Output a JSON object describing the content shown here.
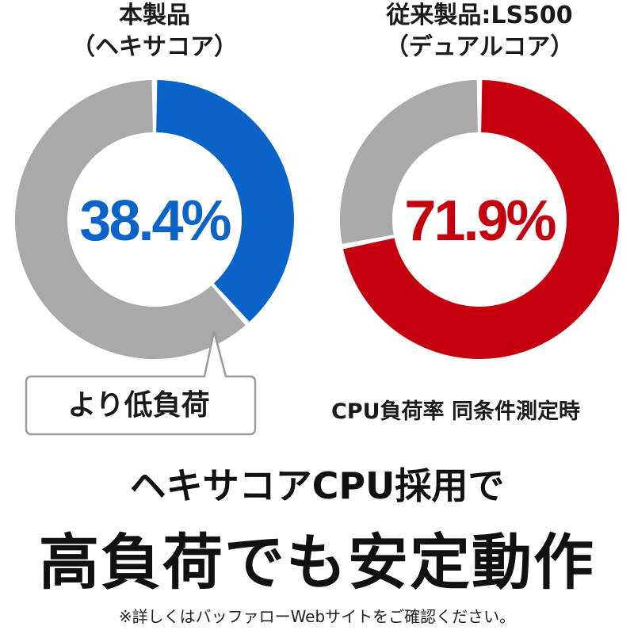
{
  "chart_data": [
    {
      "type": "pie",
      "title": "本製品",
      "subtitle": "（ヘキサコア）",
      "values": [
        38.4,
        61.6
      ],
      "center_label": "38.4%",
      "colors": [
        "#0a63c9",
        "#a9a9a9"
      ]
    },
    {
      "type": "pie",
      "title": "従来製品:LS500",
      "subtitle": "（デュアルコア）",
      "values": [
        71.9,
        28.1
      ],
      "center_label": "71.9%",
      "colors": [
        "#c4000f",
        "#a9a9a9"
      ]
    }
  ],
  "callout": "より低負荷",
  "caption": "CPU負荷率 同条件測定時",
  "headline_line1": "ヘキサコアCPU採用で",
  "headline_line2": "高負荷でも安定動作",
  "footnote": "※詳しくはバッファローWebサイトをご確認ください。"
}
